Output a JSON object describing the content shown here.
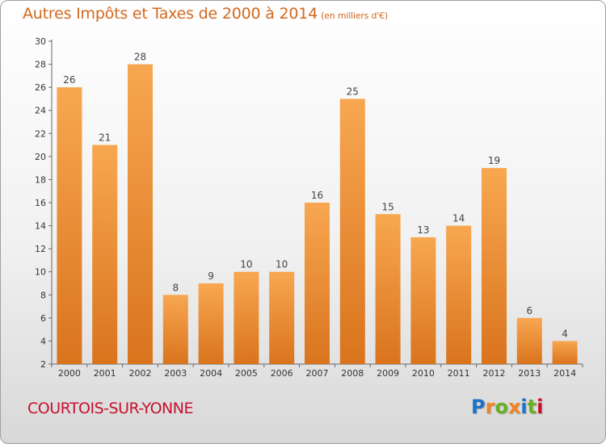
{
  "header": {
    "title": "Autres Impôts et Taxes de 2000 à 2014",
    "unit": "(en milliers d'€)"
  },
  "footer": {
    "commune": "COURTOIS-SUR-YONNE",
    "brand": "Proxiti",
    "brand_colors": [
      "#1a73c9",
      "#f58220",
      "#6ab023",
      "#f58220",
      "#1a73c9",
      "#6ab023",
      "#c8102e"
    ]
  },
  "colors": {
    "bar_light": "#f8a751",
    "bar_dark": "#d9741d",
    "title": "#d2691e",
    "commune": "#c8102e"
  },
  "chart_data": {
    "type": "bar",
    "categories": [
      "2000",
      "2001",
      "2002",
      "2003",
      "2004",
      "2005",
      "2006",
      "2007",
      "2008",
      "2009",
      "2010",
      "2011",
      "2012",
      "2013",
      "2014"
    ],
    "values": [
      26,
      21,
      28,
      8,
      9,
      10,
      10,
      16,
      25,
      15,
      13,
      14,
      19,
      6,
      4
    ],
    "title": "Autres Impôts et Taxes de 2000 à 2014",
    "ylabel": "",
    "xlabel": "",
    "ylim": [
      2,
      30
    ],
    "yticks": [
      2,
      4,
      6,
      8,
      10,
      12,
      14,
      16,
      18,
      20,
      22,
      24,
      26,
      28,
      30
    ],
    "grid": false,
    "legend": "none"
  }
}
